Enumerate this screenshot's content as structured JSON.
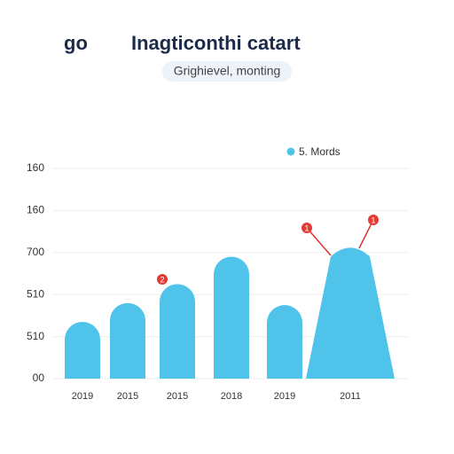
{
  "chart_data": {
    "type": "bar",
    "brand": "go",
    "title": "Inagticonthi catart",
    "subtitle": "Grighievel, monting",
    "categories": [
      "2019",
      "2015",
      "2015",
      "2018",
      "2019",
      "2011"
    ],
    "series": [
      {
        "name": "5. Mords",
        "color": "#4fc3ea",
        "values": [
          1.35,
          1.8,
          2.25,
          2.9,
          1.75,
          3.2
        ]
      }
    ],
    "ylim": [
      0,
      5
    ],
    "yticks": [
      {
        "value": 0,
        "label": "00"
      },
      {
        "value": 1,
        "label": "510"
      },
      {
        "value": 2,
        "label": "510"
      },
      {
        "value": 3,
        "label": "700"
      },
      {
        "value": 4,
        "label": "160"
      },
      {
        "value": 5,
        "label": "160"
      }
    ],
    "grid": true,
    "legend": "top-right",
    "annotations": [
      "2",
      "1",
      "1"
    ]
  }
}
